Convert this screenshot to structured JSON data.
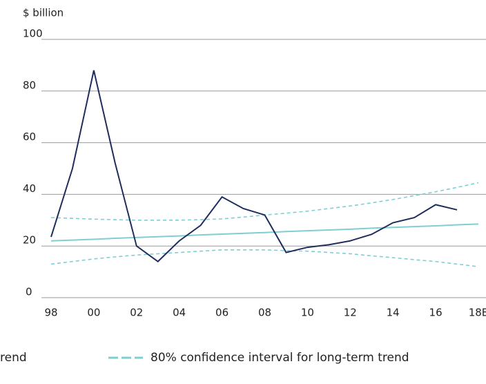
{
  "chart_data": {
    "type": "line",
    "y_label": "$ billion",
    "categories": [
      "98",
      null,
      "00",
      null,
      "02",
      null,
      "04",
      null,
      "06",
      null,
      "08",
      null,
      "10",
      null,
      "12",
      null,
      "14",
      null,
      "16",
      null,
      "18E"
    ],
    "series": [
      {
        "color": "#1f2d5c",
        "values": [
          23.5,
          50,
          88,
          52,
          20,
          14,
          22,
          28,
          39,
          34.5,
          32,
          17.5,
          19.5,
          20.5,
          22,
          24.5,
          29,
          31,
          36,
          34,
          null
        ]
      },
      {
        "name": "rend",
        "color": "#7ecfd2",
        "values": [
          22,
          22.3,
          22.6,
          23,
          23.3,
          23.6,
          23.9,
          24.3,
          24.6,
          24.9,
          25.2,
          25.6,
          25.9,
          26.2,
          26.5,
          26.9,
          27.2,
          27.5,
          27.8,
          28.2,
          28.5
        ]
      }
    ],
    "confidence_interval": {
      "name": "80% confidence interval for long-term trend",
      "color": "#7ecfd2",
      "upper": [
        31,
        30.7,
        30.4,
        30.2,
        30,
        30,
        30,
        30.2,
        30.5,
        31.2,
        32,
        32.7,
        33.5,
        34.5,
        35.5,
        36.7,
        38,
        39.5,
        41,
        42.7,
        44.5
      ],
      "lower": [
        13,
        14,
        15,
        15.8,
        16.5,
        17,
        17.5,
        18,
        18.5,
        18.5,
        18.5,
        18.2,
        18,
        17.5,
        17,
        16.2,
        15.5,
        14.7,
        14,
        13,
        12
      ]
    },
    "ylim": [
      0,
      100
    ],
    "yticks": [
      0,
      20,
      40,
      60,
      80,
      100
    ],
    "grid": true
  }
}
